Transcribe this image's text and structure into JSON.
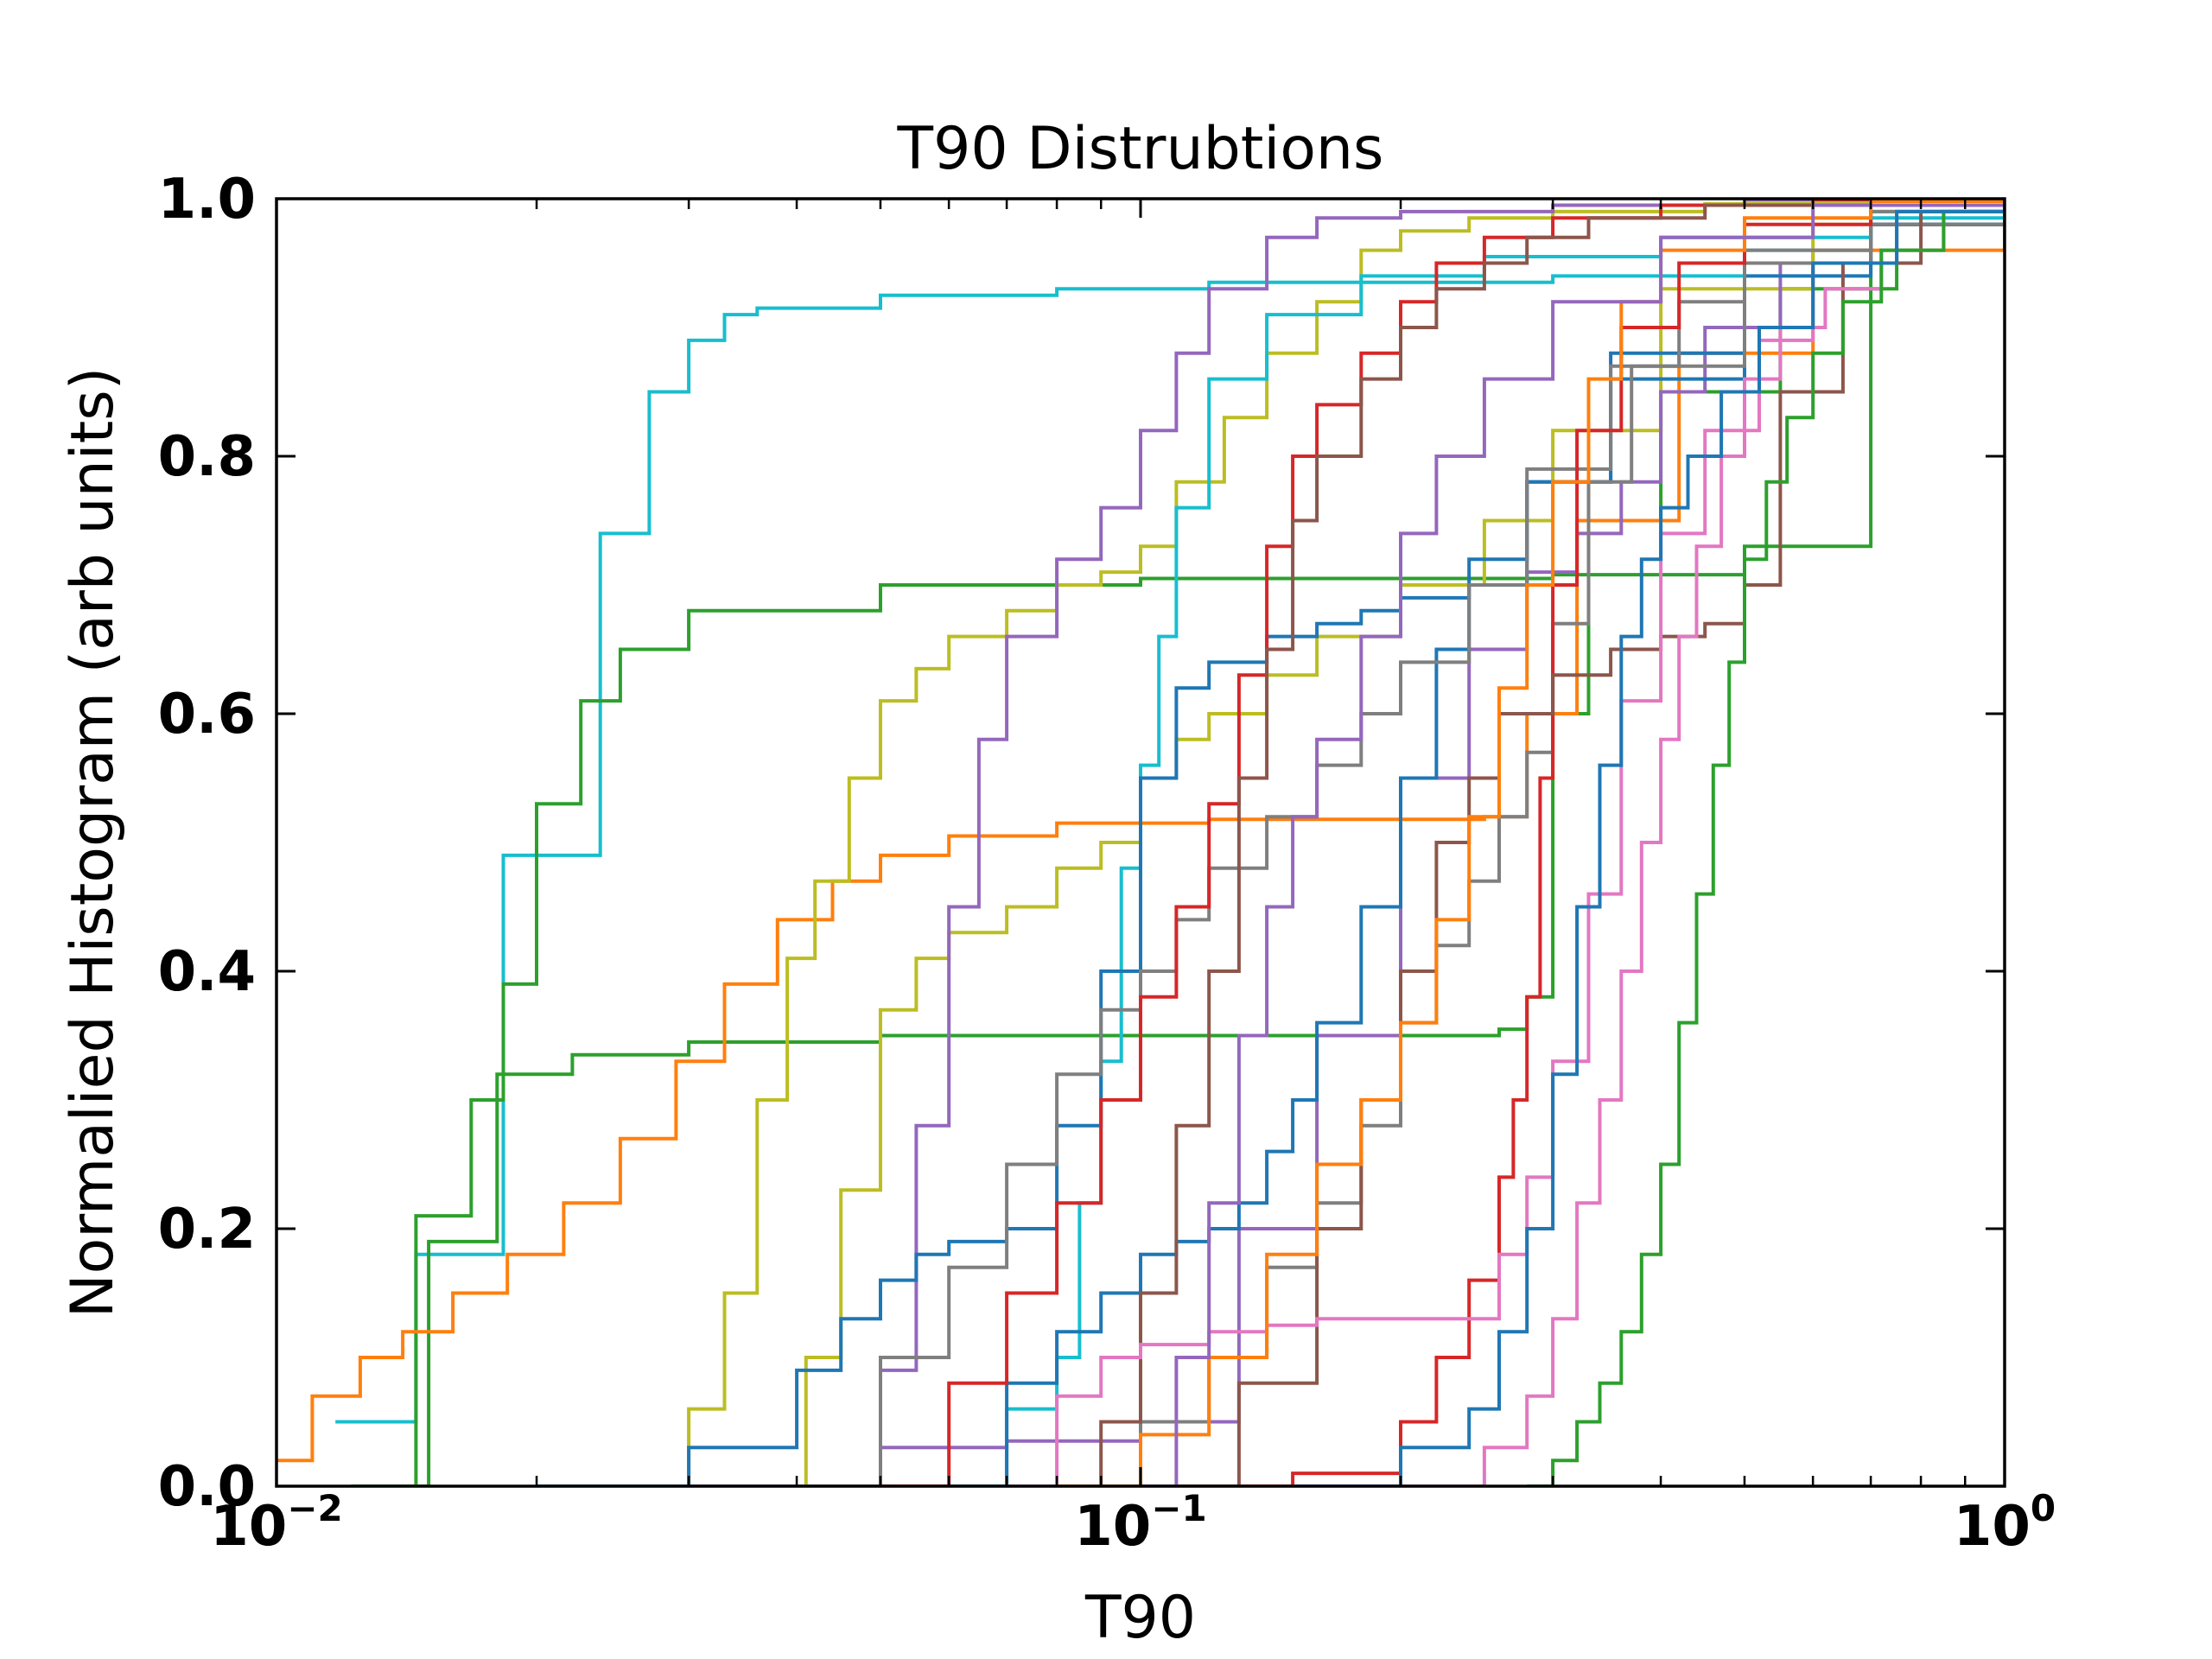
{
  "chart_data": {
    "type": "line",
    "title": "T90 Distrubtions",
    "xlabel": "T90",
    "ylabel": "Normalied Histogram (arb units)",
    "xscale": "log",
    "xlim": [
      0.01,
      1.0
    ],
    "ylim": [
      0.0,
      1.0
    ],
    "grid": false,
    "legend": "none",
    "step": true,
    "x_ticks": [
      {
        "value": 0.01,
        "base": "10",
        "exp": "−2"
      },
      {
        "value": 0.1,
        "base": "10",
        "exp": "−1"
      },
      {
        "value": 1.0,
        "base": "10",
        "exp": "0"
      }
    ],
    "y_ticks": [
      {
        "value": 0.0,
        "label": "0.0"
      },
      {
        "value": 0.2,
        "label": "0.2"
      },
      {
        "value": 0.4,
        "label": "0.4"
      },
      {
        "value": 0.6,
        "label": "0.6"
      },
      {
        "value": 0.8,
        "label": "0.8"
      },
      {
        "value": 1.0,
        "label": "1.0"
      }
    ],
    "series": [
      {
        "color": "#17becf",
        "x": [
          0.0117,
          0.0145,
          0.0183,
          0.0237,
          0.027,
          0.03,
          0.033,
          0.036,
          0.05,
          0.08,
          0.12,
          0.3,
          0.5,
          0.7,
          1.0
        ],
        "y": [
          0.05,
          0.18,
          0.49,
          0.74,
          0.85,
          0.89,
          0.91,
          0.915,
          0.925,
          0.93,
          0.935,
          0.94,
          0.96,
          0.985,
          1.0
        ]
      },
      {
        "color": "#2ca02c",
        "x": [
          0.0122,
          0.0145,
          0.0168,
          0.0183,
          0.02,
          0.0225,
          0.025,
          0.03,
          0.05,
          0.1,
          0.3,
          0.5,
          0.7,
          1.0
        ],
        "y": [
          0.0,
          0.21,
          0.3,
          0.39,
          0.53,
          0.61,
          0.65,
          0.68,
          0.7,
          0.705,
          0.708,
          0.73,
          0.98,
          1.0
        ]
      },
      {
        "color": "#2ca02c",
        "x": [
          0.0122,
          0.015,
          0.018,
          0.022,
          0.03,
          0.05,
          0.1,
          0.2,
          0.26,
          0.28,
          0.3,
          0.33,
          0.4,
          0.55,
          0.75,
          1.0
        ],
        "y": [
          0.0,
          0.19,
          0.32,
          0.335,
          0.345,
          0.35,
          0.35,
          0.35,
          0.355,
          0.38,
          0.6,
          0.75,
          0.85,
          0.93,
          0.98,
          1.0
        ]
      },
      {
        "color": "#ff7f0e",
        "x": [
          0.01,
          0.011,
          0.0125,
          0.014,
          0.016,
          0.0185,
          0.0215,
          0.025,
          0.029,
          0.033,
          0.038,
          0.044,
          0.05,
          0.06,
          0.08,
          0.12,
          0.18,
          0.25,
          0.28,
          0.32,
          0.42,
          0.6,
          1.0
        ],
        "y": [
          0.02,
          0.07,
          0.1,
          0.12,
          0.15,
          0.18,
          0.22,
          0.27,
          0.33,
          0.39,
          0.44,
          0.47,
          0.49,
          0.505,
          0.515,
          0.518,
          0.518,
          0.52,
          0.6,
          0.75,
          0.88,
          0.96,
          1.0
        ]
      },
      {
        "color": "#bcbd22",
        "x": [
          0.028,
          0.03,
          0.033,
          0.036,
          0.039,
          0.042,
          0.046,
          0.05,
          0.055,
          0.06,
          0.07,
          0.08,
          0.09,
          0.1,
          0.11,
          0.125,
          0.14,
          0.16,
          0.18,
          0.2,
          0.24,
          0.3,
          0.45,
          0.7,
          1.0
        ],
        "y": [
          0.0,
          0.06,
          0.15,
          0.3,
          0.41,
          0.47,
          0.55,
          0.61,
          0.635,
          0.66,
          0.68,
          0.7,
          0.71,
          0.73,
          0.78,
          0.83,
          0.88,
          0.92,
          0.96,
          0.975,
          0.985,
          0.99,
          0.996,
          0.999,
          1.0
        ]
      },
      {
        "color": "#bcbd22",
        "x": [
          0.037,
          0.041,
          0.045,
          0.05,
          0.055,
          0.06,
          0.07,
          0.08,
          0.09,
          0.1,
          0.11,
          0.12,
          0.14,
          0.16,
          0.2,
          0.25,
          0.3,
          0.4,
          0.6,
          1.0
        ],
        "y": [
          0.0,
          0.1,
          0.23,
          0.37,
          0.41,
          0.43,
          0.45,
          0.48,
          0.5,
          0.55,
          0.58,
          0.6,
          0.63,
          0.66,
          0.7,
          0.75,
          0.82,
          0.93,
          0.98,
          1.0
        ]
      },
      {
        "color": "#9467bd",
        "x": [
          0.045,
          0.05,
          0.055,
          0.06,
          0.065,
          0.07,
          0.08,
          0.09,
          0.1,
          0.11,
          0.12,
          0.14,
          0.16,
          0.2,
          0.3,
          0.5,
          1.0
        ],
        "y": [
          0.0,
          0.09,
          0.28,
          0.45,
          0.58,
          0.66,
          0.72,
          0.76,
          0.82,
          0.88,
          0.93,
          0.97,
          0.985,
          0.99,
          0.995,
          0.999,
          1.0
        ]
      },
      {
        "color": "#9467bd",
        "x": [
          0.03,
          0.05,
          0.07,
          0.1,
          0.13,
          0.16,
          0.2,
          0.24,
          0.28,
          0.32,
          0.36,
          0.4,
          0.45,
          0.55,
          0.7,
          1.0
        ],
        "y": [
          0.0,
          0.03,
          0.035,
          0.05,
          0.2,
          0.35,
          0.55,
          0.65,
          0.71,
          0.74,
          0.78,
          0.85,
          0.9,
          0.95,
          0.98,
          1.0
        ]
      },
      {
        "color": "#17becf",
        "x": [
          0.06,
          0.07,
          0.08,
          0.085,
          0.09,
          0.095,
          0.1,
          0.105,
          0.11,
          0.12,
          0.14,
          0.18,
          0.25,
          0.4,
          0.7,
          1.0
        ],
        "y": [
          0.0,
          0.06,
          0.1,
          0.22,
          0.33,
          0.48,
          0.56,
          0.66,
          0.76,
          0.86,
          0.91,
          0.94,
          0.955,
          0.97,
          0.99,
          1.0
        ]
      },
      {
        "color": "#1f77b4",
        "x": [
          0.02,
          0.03,
          0.04,
          0.045,
          0.05,
          0.055,
          0.06,
          0.07,
          0.08,
          0.09,
          0.1,
          0.11,
          0.12,
          0.14,
          0.16,
          0.18,
          0.2,
          0.24,
          0.28,
          0.35,
          0.5,
          0.7,
          1.0
        ],
        "y": [
          0.0,
          0.03,
          0.09,
          0.13,
          0.16,
          0.18,
          0.19,
          0.2,
          0.28,
          0.4,
          0.55,
          0.62,
          0.64,
          0.66,
          0.67,
          0.68,
          0.69,
          0.72,
          0.78,
          0.88,
          0.95,
          0.98,
          1.0
        ]
      },
      {
        "color": "#1f77b4",
        "x": [
          0.06,
          0.07,
          0.08,
          0.09,
          0.1,
          0.11,
          0.12,
          0.13,
          0.14,
          0.15,
          0.16,
          0.18,
          0.2,
          0.22,
          0.24,
          0.28,
          0.35,
          0.5,
          0.7,
          1.0
        ],
        "y": [
          0.0,
          0.08,
          0.12,
          0.15,
          0.18,
          0.19,
          0.2,
          0.22,
          0.26,
          0.3,
          0.36,
          0.45,
          0.55,
          0.65,
          0.7,
          0.78,
          0.86,
          0.94,
          0.98,
          1.0
        ]
      },
      {
        "color": "#7f7f7f",
        "x": [
          0.04,
          0.05,
          0.06,
          0.07,
          0.08,
          0.09,
          0.1,
          0.11,
          0.12,
          0.14,
          0.16,
          0.18,
          0.2,
          0.24,
          0.28,
          0.35,
          0.5,
          0.7,
          1.0
        ],
        "y": [
          0.0,
          0.1,
          0.17,
          0.25,
          0.32,
          0.37,
          0.4,
          0.44,
          0.48,
          0.52,
          0.56,
          0.6,
          0.64,
          0.7,
          0.79,
          0.87,
          0.95,
          0.98,
          1.0
        ]
      },
      {
        "color": "#7f7f7f",
        "x": [
          0.08,
          0.1,
          0.12,
          0.14,
          0.16,
          0.18,
          0.2,
          0.22,
          0.24,
          0.26,
          0.28,
          0.3,
          0.33,
          0.37,
          0.42,
          0.5,
          0.7,
          1.0
        ],
        "y": [
          0.0,
          0.05,
          0.1,
          0.17,
          0.22,
          0.28,
          0.36,
          0.42,
          0.47,
          0.52,
          0.57,
          0.67,
          0.78,
          0.87,
          0.92,
          0.96,
          0.99,
          1.0
        ]
      },
      {
        "color": "#d62728",
        "x": [
          0.05,
          0.06,
          0.07,
          0.08,
          0.09,
          0.1,
          0.11,
          0.12,
          0.13,
          0.14,
          0.15,
          0.16,
          0.18,
          0.2,
          0.22,
          0.25,
          0.3,
          0.4,
          0.6,
          1.0
        ],
        "y": [
          0.0,
          0.08,
          0.15,
          0.22,
          0.3,
          0.38,
          0.45,
          0.53,
          0.63,
          0.73,
          0.8,
          0.84,
          0.88,
          0.92,
          0.95,
          0.97,
          0.985,
          0.995,
          0.999,
          1.0
        ]
      },
      {
        "color": "#d62728",
        "x": [
          0.1,
          0.15,
          0.2,
          0.22,
          0.24,
          0.26,
          0.27,
          0.28,
          0.29,
          0.3,
          0.32,
          0.36,
          0.42,
          0.5,
          0.7,
          1.0
        ],
        "y": [
          0.0,
          0.01,
          0.05,
          0.1,
          0.16,
          0.24,
          0.3,
          0.38,
          0.55,
          0.7,
          0.82,
          0.9,
          0.95,
          0.98,
          0.995,
          1.0
        ]
      },
      {
        "color": "#8c564b",
        "x": [
          0.08,
          0.09,
          0.1,
          0.11,
          0.12,
          0.13,
          0.14,
          0.15,
          0.16,
          0.18,
          0.2,
          0.22,
          0.25,
          0.28,
          0.33,
          0.45,
          0.7,
          1.0
        ],
        "y": [
          0.0,
          0.05,
          0.15,
          0.28,
          0.4,
          0.55,
          0.65,
          0.75,
          0.8,
          0.86,
          0.9,
          0.93,
          0.95,
          0.97,
          0.985,
          0.995,
          0.999,
          1.0
        ]
      },
      {
        "color": "#8c564b",
        "x": [
          0.1,
          0.13,
          0.16,
          0.18,
          0.2,
          0.22,
          0.24,
          0.26,
          0.3,
          0.35,
          0.4,
          0.45,
          0.5,
          0.55,
          0.65,
          0.8,
          1.0
        ],
        "y": [
          0.0,
          0.08,
          0.2,
          0.3,
          0.4,
          0.5,
          0.55,
          0.6,
          0.63,
          0.65,
          0.66,
          0.67,
          0.7,
          0.85,
          0.95,
          0.99,
          1.0
        ]
      },
      {
        "color": "#e377c2",
        "x": [
          0.07,
          0.08,
          0.09,
          0.1,
          0.12,
          0.14,
          0.16,
          0.2,
          0.25,
          0.26,
          0.28,
          0.3,
          0.33,
          0.36,
          0.4,
          0.45,
          0.52,
          0.6,
          0.75,
          1.0
        ],
        "y": [
          0.0,
          0.07,
          0.1,
          0.11,
          0.12,
          0.125,
          0.13,
          0.13,
          0.13,
          0.18,
          0.24,
          0.33,
          0.46,
          0.61,
          0.74,
          0.82,
          0.89,
          0.95,
          0.99,
          1.0
        ]
      },
      {
        "color": "#e377c2",
        "x": [
          0.15,
          0.25,
          0.28,
          0.3,
          0.32,
          0.34,
          0.36,
          0.38,
          0.4,
          0.42,
          0.44,
          0.47,
          0.5,
          0.55,
          0.62,
          0.72,
          0.85,
          1.0
        ],
        "y": [
          0.0,
          0.03,
          0.07,
          0.13,
          0.22,
          0.3,
          0.4,
          0.5,
          0.58,
          0.66,
          0.73,
          0.8,
          0.86,
          0.9,
          0.93,
          0.96,
          0.99,
          1.0
        ]
      },
      {
        "color": "#2ca02c",
        "x": [
          0.28,
          0.3,
          0.32,
          0.34,
          0.36,
          0.38,
          0.4,
          0.42,
          0.44,
          0.46,
          0.48,
          0.5,
          0.53,
          0.56,
          0.6,
          0.65,
          0.72,
          0.85,
          1.0
        ],
        "y": [
          0.0,
          0.02,
          0.05,
          0.08,
          0.12,
          0.18,
          0.25,
          0.36,
          0.46,
          0.56,
          0.64,
          0.72,
          0.78,
          0.83,
          0.88,
          0.92,
          0.96,
          0.99,
          1.0
        ]
      },
      {
        "color": "#ff7f0e",
        "x": [
          0.08,
          0.1,
          0.12,
          0.14,
          0.16,
          0.18,
          0.2,
          0.22,
          0.24,
          0.26,
          0.28,
          0.3,
          0.33,
          0.36,
          0.4,
          0.5,
          0.7,
          1.0
        ],
        "y": [
          0.0,
          0.04,
          0.1,
          0.18,
          0.25,
          0.3,
          0.36,
          0.44,
          0.52,
          0.62,
          0.7,
          0.78,
          0.86,
          0.92,
          0.96,
          0.985,
          0.998,
          1.0
        ]
      },
      {
        "color": "#9467bd",
        "x": [
          0.1,
          0.11,
          0.12,
          0.13,
          0.14,
          0.15,
          0.16,
          0.18,
          0.2,
          0.22,
          0.25,
          0.3,
          0.4,
          0.6,
          1.0
        ],
        "y": [
          0.0,
          0.1,
          0.22,
          0.35,
          0.45,
          0.52,
          0.58,
          0.66,
          0.74,
          0.8,
          0.86,
          0.92,
          0.97,
          0.995,
          1.0
        ]
      },
      {
        "color": "#1f77b4",
        "x": [
          0.15,
          0.2,
          0.24,
          0.26,
          0.28,
          0.3,
          0.32,
          0.34,
          0.36,
          0.38,
          0.4,
          0.43,
          0.47,
          0.52,
          0.6,
          0.75,
          1.0
        ],
        "y": [
          0.0,
          0.03,
          0.06,
          0.12,
          0.2,
          0.32,
          0.45,
          0.56,
          0.66,
          0.72,
          0.76,
          0.8,
          0.85,
          0.9,
          0.95,
          0.99,
          1.0
        ]
      }
    ]
  }
}
